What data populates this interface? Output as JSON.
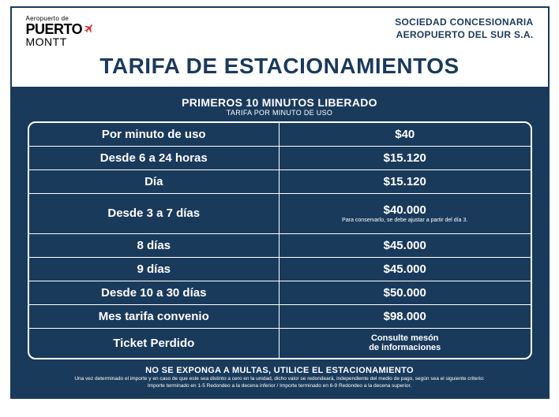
{
  "logo": {
    "top": "Aeropuerto de",
    "mid": "PUERTO",
    "bot": "MONTT"
  },
  "company": {
    "line1": "SOCIEDAD CONCESIONARIA",
    "line2": "AEROPUERTO DEL SUR S.A."
  },
  "title": "TARIFA DE ESTACIONAMIENTOS",
  "subtitle": "PRIMEROS 10 MINUTOS LIBERADO",
  "subsub": "TARIFA POR MINUTO DE USO",
  "rows": [
    {
      "label": "Por minuto de uso",
      "price": "$40",
      "note": ""
    },
    {
      "label": "Desde 6 a 24 horas",
      "price": "$15.120",
      "note": ""
    },
    {
      "label": "Día",
      "price": "$15.120",
      "note": ""
    },
    {
      "label": "Desde 3 a 7 días",
      "price": "$40.000",
      "note": "Para conservarlo, se debe ajustar a partir del día 3."
    },
    {
      "label": "8 días",
      "price": "$45.000",
      "note": ""
    },
    {
      "label": "9 días",
      "price": "$45.000",
      "note": ""
    },
    {
      "label": "Desde 10 a 30 días",
      "price": "$50.000",
      "note": ""
    },
    {
      "label": "Mes tarifa convenio",
      "price": "$98.000",
      "note": ""
    },
    {
      "label": "Ticket Perdido",
      "price": "",
      "note": "Consulte mesón de informaciones"
    }
  ],
  "footer": {
    "title": "NO SE EXPONGA A MULTAS, UTILICE EL ESTACIONAMIENTO",
    "line1": "Una vez determinado el importe y en caso de que este sea distinto a cero en la unidad, dicho valor se redondeará, independiente del medio de pago, según sea el siguiente criterio:",
    "line2": "Importe terminado en 1-5 Redondeo a la decena inferior / Importe terminado en 6-9 Redondeo a la decena superior."
  },
  "colors": {
    "primary": "#1a3a5c",
    "accent": "#d9232a"
  }
}
